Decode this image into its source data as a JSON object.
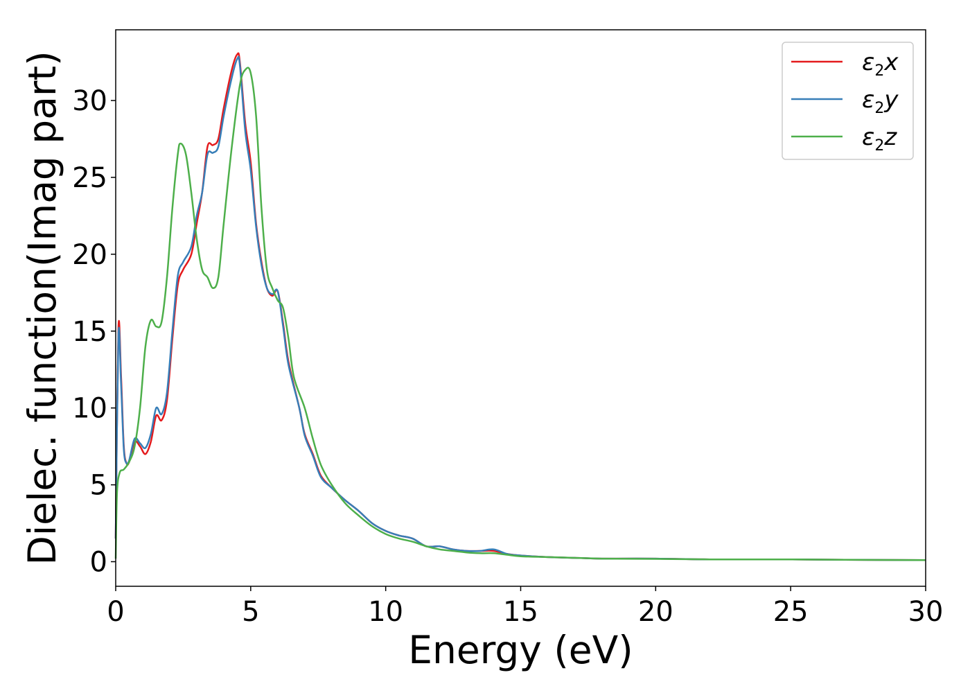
{
  "chart_data": {
    "type": "line",
    "xlabel": "Energy (eV)",
    "ylabel": "Dielec. function(Imag part)",
    "xlim": [
      0,
      30
    ],
    "ylim": [
      -1.6,
      34.6
    ],
    "xticks": [
      0,
      5,
      10,
      15,
      20,
      25,
      30
    ],
    "yticks": [
      0,
      5,
      10,
      15,
      20,
      25,
      30
    ],
    "grid": false,
    "legend": "top-right",
    "series": [
      {
        "name": "ε2x",
        "legend_main": "ε",
        "legend_sub": "2",
        "legend_tail": "x",
        "color": "#e41a1c",
        "x": [
          0.0,
          0.1,
          0.2,
          0.3,
          0.4,
          0.5,
          0.7,
          0.9,
          1.1,
          1.3,
          1.5,
          1.7,
          1.9,
          2.1,
          2.3,
          2.5,
          2.8,
          3.0,
          3.2,
          3.4,
          3.6,
          3.8,
          4.0,
          4.3,
          4.5,
          4.6,
          4.8,
          5.0,
          5.2,
          5.4,
          5.6,
          5.8,
          6.0,
          6.2,
          6.4,
          6.8,
          7.0,
          7.3,
          7.6,
          8.0,
          8.5,
          9.0,
          9.5,
          10.0,
          10.5,
          11.0,
          11.5,
          12.0,
          12.5,
          13.0,
          13.5,
          14.0,
          14.5,
          15.0,
          16.0,
          17.0,
          18.0,
          20.0,
          22.0,
          25.0,
          27.0,
          30.0
        ],
        "y": [
          1.5,
          15.2,
          12.0,
          7.5,
          6.4,
          6.5,
          7.8,
          7.5,
          7.0,
          7.8,
          9.5,
          9.2,
          10.5,
          14.5,
          18.0,
          19.0,
          20.0,
          22.0,
          24.0,
          27.0,
          27.1,
          27.5,
          29.5,
          32.0,
          33.0,
          32.5,
          28.5,
          26.0,
          22.0,
          19.5,
          17.8,
          17.3,
          17.6,
          15.5,
          13.0,
          10.0,
          8.3,
          7.0,
          5.6,
          4.8,
          4.0,
          3.3,
          2.5,
          2.0,
          1.7,
          1.5,
          1.0,
          1.0,
          0.8,
          0.7,
          0.7,
          0.7,
          0.5,
          0.4,
          0.3,
          0.25,
          0.2,
          0.2,
          0.15,
          0.15,
          0.12,
          0.1
        ]
      },
      {
        "name": "ε2y",
        "legend_main": "ε",
        "legend_sub": "2",
        "legend_tail": "y",
        "color": "#377eb8",
        "x": [
          0.0,
          0.1,
          0.2,
          0.3,
          0.4,
          0.5,
          0.7,
          0.9,
          1.1,
          1.3,
          1.5,
          1.7,
          1.9,
          2.1,
          2.3,
          2.5,
          2.8,
          3.0,
          3.2,
          3.4,
          3.6,
          3.8,
          4.0,
          4.3,
          4.5,
          4.6,
          4.8,
          5.0,
          5.2,
          5.4,
          5.6,
          5.8,
          6.0,
          6.2,
          6.4,
          6.8,
          7.0,
          7.3,
          7.6,
          8.0,
          8.5,
          9.0,
          9.5,
          10.0,
          10.5,
          11.0,
          11.5,
          12.0,
          12.5,
          13.0,
          13.5,
          14.0,
          14.5,
          15.0,
          16.0,
          17.0,
          18.0,
          20.0,
          22.0,
          25.0,
          27.0,
          30.0
        ],
        "y": [
          1.5,
          14.8,
          11.5,
          7.3,
          6.4,
          6.6,
          8.0,
          7.7,
          7.4,
          8.3,
          10.0,
          9.6,
          11.0,
          15.0,
          18.6,
          19.5,
          20.5,
          22.5,
          24.0,
          26.5,
          26.6,
          27.0,
          29.0,
          31.5,
          32.7,
          32.3,
          28.0,
          25.5,
          21.8,
          19.3,
          17.8,
          17.4,
          17.6,
          15.3,
          12.8,
          10.0,
          8.2,
          6.9,
          5.5,
          4.8,
          4.0,
          3.3,
          2.5,
          2.0,
          1.7,
          1.5,
          1.0,
          1.0,
          0.8,
          0.7,
          0.7,
          0.8,
          0.5,
          0.4,
          0.3,
          0.25,
          0.2,
          0.2,
          0.15,
          0.15,
          0.12,
          0.1
        ]
      },
      {
        "name": "ε2z",
        "legend_main": "ε",
        "legend_sub": "2",
        "legend_tail": "z",
        "color": "#4daf4a",
        "x": [
          0.0,
          0.05,
          0.15,
          0.3,
          0.5,
          0.7,
          0.9,
          1.1,
          1.3,
          1.5,
          1.7,
          1.9,
          2.1,
          2.3,
          2.4,
          2.6,
          2.8,
          3.0,
          3.2,
          3.4,
          3.6,
          3.8,
          4.0,
          4.3,
          4.6,
          4.8,
          5.0,
          5.2,
          5.4,
          5.6,
          5.8,
          6.0,
          6.2,
          6.4,
          6.6,
          7.0,
          7.3,
          7.6,
          8.0,
          8.5,
          9.0,
          9.5,
          10.0,
          10.5,
          11.0,
          11.5,
          12.0,
          12.5,
          13.0,
          13.5,
          14.0,
          14.5,
          15.0,
          16.0,
          17.0,
          18.0,
          20.0,
          22.0,
          25.0,
          27.0,
          30.0
        ],
        "y": [
          0.2,
          4.5,
          5.8,
          6.0,
          6.5,
          7.5,
          10.0,
          14.0,
          15.7,
          15.3,
          15.6,
          18.5,
          23.0,
          26.5,
          27.2,
          26.5,
          24.0,
          21.0,
          19.0,
          18.5,
          17.8,
          18.5,
          22.0,
          27.0,
          31.0,
          32.0,
          31.8,
          29.0,
          23.0,
          19.0,
          17.8,
          17.0,
          16.5,
          14.5,
          12.0,
          10.0,
          8.0,
          6.3,
          5.0,
          3.8,
          3.0,
          2.3,
          1.8,
          1.5,
          1.3,
          1.0,
          0.8,
          0.7,
          0.6,
          0.55,
          0.55,
          0.45,
          0.35,
          0.3,
          0.25,
          0.2,
          0.18,
          0.15,
          0.15,
          0.12,
          0.1
        ]
      }
    ]
  }
}
